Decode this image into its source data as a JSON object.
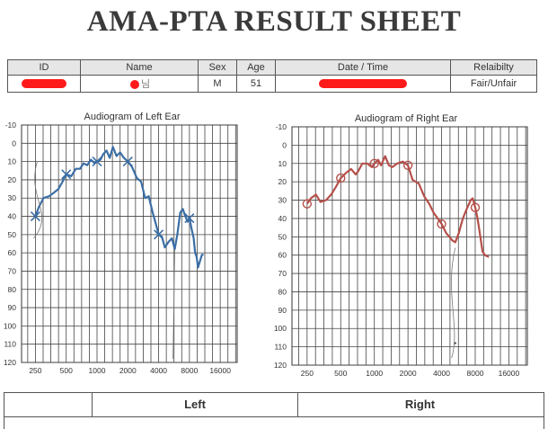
{
  "sheet": {
    "title": "AMA-PTA RESULT SHEET"
  },
  "info_table": {
    "headers": {
      "id": "ID",
      "name": "Name",
      "sex": "Sex",
      "age": "Age",
      "datetime": "Date / Time",
      "reliability": "Relaibilty"
    },
    "values": {
      "name_suffix": "님",
      "sex": "M",
      "age": "51",
      "reliability": "Fair/Unfair"
    }
  },
  "colors": {
    "left": "#3b6ea5",
    "right": "#b5504a",
    "redaction": "#ff1a1a"
  },
  "chart_data": [
    {
      "type": "line",
      "title": "Audiogram of Left Ear",
      "x_ticks": [
        250,
        500,
        1000,
        2000,
        4000,
        8000,
        16000
      ],
      "x_scale": "log2",
      "ylim": [
        -10,
        120
      ],
      "y_ticks": [
        -10,
        0,
        10,
        20,
        30,
        40,
        50,
        60,
        70,
        80,
        90,
        100,
        110,
        120
      ],
      "y_inverted": true,
      "grid": true,
      "marker": "x",
      "markers": [
        {
          "x": 250,
          "y": 40
        },
        {
          "x": 500,
          "y": 17
        },
        {
          "x": 1000,
          "y": 10
        },
        {
          "x": 2000,
          "y": 10
        },
        {
          "x": 4000,
          "y": 50
        },
        {
          "x": 8000,
          "y": 41
        }
      ],
      "series": [
        {
          "values": [
            [
              250,
              40
            ],
            [
              270,
              35
            ],
            [
              300,
              30
            ],
            [
              340,
              29
            ],
            [
              380,
              27
            ],
            [
              420,
              25
            ],
            [
              460,
              21
            ],
            [
              500,
              17
            ],
            [
              560,
              18
            ],
            [
              620,
              14
            ],
            [
              680,
              14
            ],
            [
              740,
              11
            ],
            [
              800,
              12
            ],
            [
              870,
              9
            ],
            [
              950,
              11
            ],
            [
              1000,
              10
            ],
            [
              1080,
              9
            ],
            [
              1150,
              6
            ],
            [
              1240,
              4
            ],
            [
              1330,
              8
            ],
            [
              1430,
              2
            ],
            [
              1550,
              7
            ],
            [
              1680,
              5
            ],
            [
              1830,
              8
            ],
            [
              2000,
              10
            ],
            [
              2200,
              13
            ],
            [
              2450,
              19
            ],
            [
              2700,
              21
            ],
            [
              2950,
              30
            ],
            [
              3200,
              29
            ],
            [
              3500,
              38
            ],
            [
              3750,
              44
            ],
            [
              4000,
              50
            ],
            [
              4300,
              51
            ],
            [
              4600,
              57
            ],
            [
              5000,
              54
            ],
            [
              5400,
              52
            ],
            [
              5750,
              58
            ],
            [
              6100,
              50
            ],
            [
              6500,
              38
            ],
            [
              6900,
              36
            ],
            [
              7300,
              40
            ],
            [
              7700,
              43
            ],
            [
              8000,
              41
            ],
            [
              8400,
              47
            ],
            [
              8800,
              52
            ],
            [
              9100,
              60
            ],
            [
              9400,
              62
            ],
            [
              9700,
              68
            ],
            [
              10200,
              64
            ],
            [
              10600,
              61
            ],
            [
              11000,
              61
            ]
          ]
        }
      ]
    },
    {
      "type": "line",
      "title": "Audiogram of Right Ear",
      "x_ticks": [
        250,
        500,
        1000,
        2000,
        4000,
        8000,
        16000
      ],
      "x_scale": "log2",
      "ylim": [
        -10,
        120
      ],
      "y_ticks": [
        -10,
        0,
        10,
        20,
        30,
        40,
        50,
        60,
        70,
        80,
        90,
        100,
        110,
        120
      ],
      "y_inverted": true,
      "grid": true,
      "marker": "o",
      "markers": [
        {
          "x": 250,
          "y": 32
        },
        {
          "x": 500,
          "y": 18
        },
        {
          "x": 1000,
          "y": 10
        },
        {
          "x": 2000,
          "y": 11
        },
        {
          "x": 4000,
          "y": 43
        },
        {
          "x": 8000,
          "y": 34
        }
      ],
      "series": [
        {
          "values": [
            [
              250,
              32
            ],
            [
              270,
              29
            ],
            [
              300,
              27
            ],
            [
              330,
              31
            ],
            [
              370,
              30
            ],
            [
              410,
              27
            ],
            [
              450,
              23
            ],
            [
              500,
              18
            ],
            [
              560,
              15
            ],
            [
              620,
              13
            ],
            [
              680,
              16
            ],
            [
              720,
              14
            ],
            [
              780,
              10
            ],
            [
              860,
              10
            ],
            [
              950,
              12
            ],
            [
              1000,
              10
            ],
            [
              1080,
              8
            ],
            [
              1150,
              11
            ],
            [
              1250,
              6
            ],
            [
              1350,
              11
            ],
            [
              1450,
              12
            ],
            [
              1600,
              10
            ],
            [
              1800,
              9
            ],
            [
              2000,
              11
            ],
            [
              2200,
              19
            ],
            [
              2500,
              21
            ],
            [
              2800,
              28
            ],
            [
              3100,
              32
            ],
            [
              3400,
              37
            ],
            [
              3700,
              40
            ],
            [
              4000,
              43
            ],
            [
              4400,
              48
            ],
            [
              5000,
              52
            ],
            [
              5300,
              53
            ],
            [
              5700,
              48
            ],
            [
              6200,
              40
            ],
            [
              6700,
              35
            ],
            [
              7300,
              30
            ],
            [
              7600,
              29
            ],
            [
              8000,
              34
            ],
            [
              8400,
              40
            ],
            [
              8900,
              50
            ],
            [
              9300,
              58
            ],
            [
              9800,
              60
            ],
            [
              10600,
              61
            ]
          ]
        }
      ]
    }
  ],
  "bottom_table": {
    "left_label": "Left",
    "right_label": "Right"
  }
}
